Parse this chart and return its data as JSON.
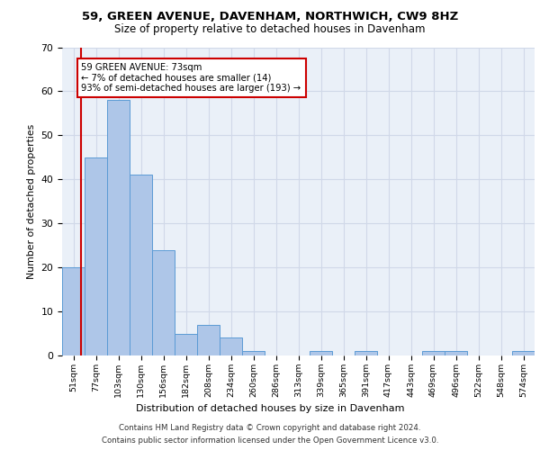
{
  "title1": "59, GREEN AVENUE, DAVENHAM, NORTHWICH, CW9 8HZ",
  "title2": "Size of property relative to detached houses in Davenham",
  "xlabel": "Distribution of detached houses by size in Davenham",
  "ylabel": "Number of detached properties",
  "bar_values": [
    20,
    45,
    58,
    41,
    24,
    5,
    7,
    4,
    1,
    0,
    0,
    1,
    0,
    1,
    0,
    0,
    1,
    1,
    0,
    0,
    1
  ],
  "bar_labels": [
    "51sqm",
    "77sqm",
    "103sqm",
    "130sqm",
    "156sqm",
    "182sqm",
    "208sqm",
    "234sqm",
    "260sqm",
    "286sqm",
    "313sqm",
    "339sqm",
    "365sqm",
    "391sqm",
    "417sqm",
    "443sqm",
    "469sqm",
    "496sqm",
    "522sqm",
    "548sqm",
    "574sqm"
  ],
  "bar_color": "#aec6e8",
  "bar_edge_color": "#5b9bd5",
  "ylim": [
    0,
    70
  ],
  "yticks": [
    0,
    10,
    20,
    30,
    40,
    50,
    60,
    70
  ],
  "annotation_text": "59 GREEN AVENUE: 73sqm\n← 7% of detached houses are smaller (14)\n93% of semi-detached houses are larger (193) →",
  "annotation_box_color": "#ffffff",
  "annotation_box_edge_color": "#cc0000",
  "grid_color": "#d0d8e8",
  "background_color": "#eaf0f8",
  "footer1": "Contains HM Land Registry data © Crown copyright and database right 2024.",
  "footer2": "Contains public sector information licensed under the Open Government Licence v3.0."
}
